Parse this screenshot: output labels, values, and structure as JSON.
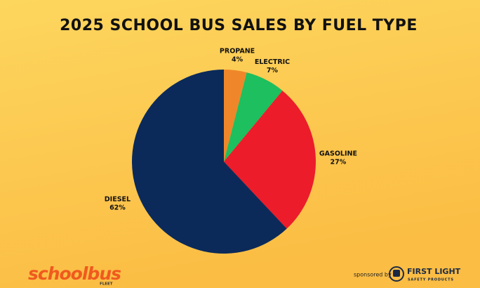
{
  "chart_data": {
    "type": "pie",
    "title": "2025 SCHOOL BUS SALES BY FUEL TYPE",
    "categories": [
      "PROPANE",
      "ELECTRIC",
      "GASOLINE",
      "DIESEL"
    ],
    "values": [
      4,
      7,
      27,
      62
    ],
    "value_labels": [
      "4%",
      "7%",
      "27%",
      "62%"
    ],
    "colors": [
      "#f0862a",
      "#1dbf5e",
      "#ec1c2b",
      "#0b2a5a"
    ]
  },
  "footer": {
    "logo": "schoolbus",
    "logo_sub": "FLEET",
    "sponsored": "sponsored by",
    "sponsor": "FIRST LIGHT",
    "sponsor_sub": "SAFETY PRODUCTS"
  }
}
